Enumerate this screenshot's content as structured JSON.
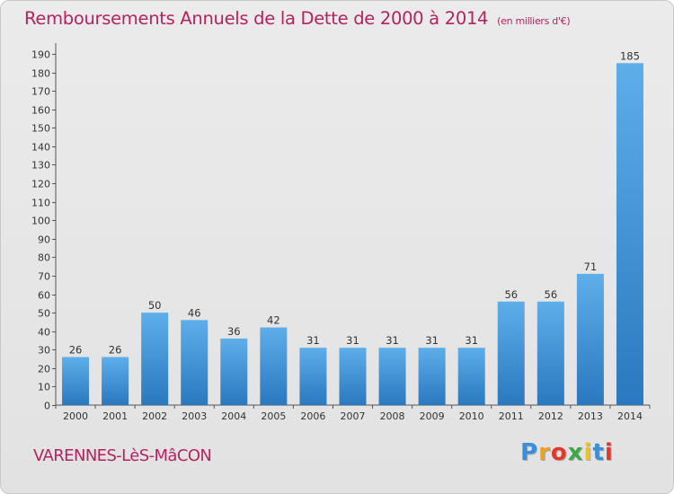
{
  "chart_data": {
    "type": "bar",
    "title": "Remboursements Annuels de la Dette de 2000 à 2014",
    "subtitle": "(en milliers d'€)",
    "categories": [
      "2000",
      "2001",
      "2002",
      "2003",
      "2004",
      "2005",
      "2006",
      "2007",
      "2008",
      "2009",
      "2010",
      "2011",
      "2012",
      "2013",
      "2014"
    ],
    "values": [
      26,
      26,
      50,
      46,
      36,
      42,
      31,
      31,
      31,
      31,
      31,
      56,
      56,
      71,
      185
    ],
    "ylim": [
      0,
      190
    ],
    "ytick_step": 10,
    "grid": false,
    "bar_color": "#3f8fd6"
  },
  "commune": "VARENNES-LèS-MâCON",
  "logo": {
    "letters": [
      "P",
      "r",
      "o",
      "x",
      "i",
      "t",
      "i"
    ],
    "colors": [
      "#3b8fd9",
      "#f0a020",
      "#e23a2a",
      "#3ba84a",
      "#f0c020",
      "#3b8fd9",
      "#e23a2a"
    ]
  }
}
